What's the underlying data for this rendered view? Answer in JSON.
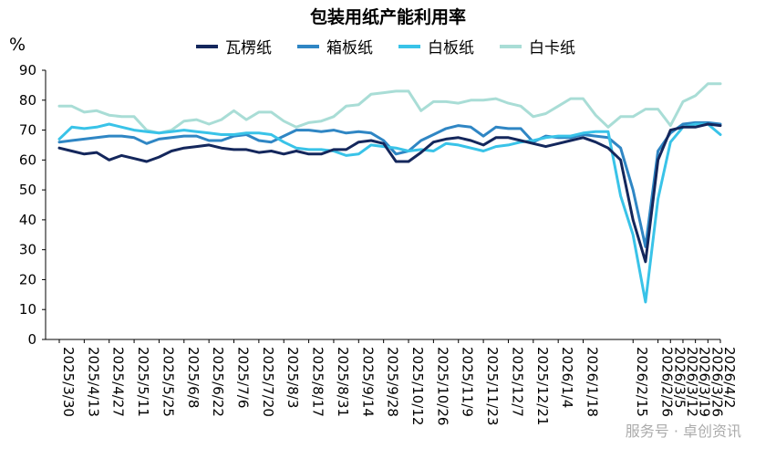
{
  "chart_data": {
    "type": "line",
    "title": "包装用纸产能利用率",
    "ylabel": "%",
    "ylim": [
      0,
      90
    ],
    "yticks": [
      0,
      10,
      20,
      30,
      40,
      50,
      60,
      70,
      80,
      90
    ],
    "grid": false,
    "legend_position": "top",
    "x": [
      "2025/3/30",
      "2025/4/6",
      "2025/4/13",
      "2025/4/20",
      "2025/4/27",
      "2025/5/4",
      "2025/5/11",
      "2025/5/18",
      "2025/5/25",
      "2025/6/1",
      "2025/6/8",
      "2025/6/15",
      "2025/6/22",
      "2025/6/29",
      "2025/7/6",
      "2025/7/13",
      "2025/7/20",
      "2025/7/27",
      "2025/8/3",
      "2025/8/10",
      "2025/8/17",
      "2025/8/24",
      "2025/8/31",
      "2025/9/7",
      "2025/9/14",
      "2025/9/21",
      "2025/9/28",
      "2025/10/5",
      "2025/10/12",
      "2025/10/19",
      "2025/10/26",
      "2025/11/2",
      "2025/11/9",
      "2025/11/16",
      "2025/11/23",
      "2025/11/30",
      "2025/12/7",
      "2025/12/14",
      "2025/12/21",
      "2025/12/28",
      "2026/1/4",
      "2026/1/11",
      "2026/1/18",
      "2026/1/25",
      "2026/2/1",
      "2026/2/8",
      "2026/2/15",
      "2026/2/22",
      "2026/2/26",
      "2026/3/5",
      "2026/3/12",
      "2026/3/19",
      "2026/3/26",
      "2026/4/2"
    ],
    "x_tick_labels": [
      "2025/3/30",
      "2025/4/13",
      "2025/4/27",
      "2025/5/11",
      "2025/5/25",
      "2025/6/8",
      "2025/6/22",
      "2025/7/6",
      "2025/7/20",
      "2025/8/3",
      "2025/8/17",
      "2025/8/31",
      "2025/9/14",
      "2025/9/28",
      "2025/10/12",
      "2025/10/26",
      "2025/11/9",
      "2025/11/23",
      "2025/12/7",
      "2025/12/21",
      "2026/1/4",
      "2026/1/18",
      "2026/2/15",
      "2026/2/26",
      "2026/3/5",
      "2026/3/12",
      "2026/3/19",
      "2026/3/26",
      "2026/4/2"
    ],
    "series": [
      {
        "name": "瓦楞纸",
        "color": "#14275c",
        "values": [
          64,
          63,
          62,
          62.5,
          60,
          61.5,
          60.5,
          59.5,
          61,
          63,
          64,
          64.5,
          65,
          64,
          63.5,
          63.5,
          62.5,
          63,
          62,
          63,
          62,
          62,
          63.5,
          63.5,
          66,
          66.5,
          65.5,
          59.5,
          59.5,
          62.5,
          66,
          67,
          67.5,
          66.5,
          65,
          67.5,
          67.5,
          66.5,
          65.5,
          64.5,
          65.5,
          66.5,
          67.5,
          66,
          64,
          60,
          40,
          26,
          60,
          70,
          71,
          71,
          72,
          71.5
        ]
      },
      {
        "name": "箱板纸",
        "color": "#2f86c4",
        "values": [
          66,
          66.5,
          67,
          67.5,
          68,
          68,
          67.5,
          65.5,
          67,
          67.5,
          68,
          68,
          66.5,
          66.5,
          68,
          68.5,
          66.5,
          66,
          68,
          70,
          70,
          69.5,
          70,
          69,
          69.5,
          69,
          66.5,
          62,
          63,
          66.5,
          68.5,
          70.5,
          71.5,
          71,
          68,
          71,
          70.5,
          70.5,
          66,
          68,
          67.5,
          67.5,
          68.5,
          68,
          67.5,
          64,
          50,
          31,
          63,
          69,
          72,
          72.5,
          72.5,
          72
        ]
      },
      {
        "name": "白板纸",
        "color": "#39c3e8",
        "values": [
          67,
          71,
          70.5,
          71,
          72,
          71,
          70,
          69.5,
          69,
          69.5,
          70,
          69.5,
          69,
          68.5,
          68.5,
          69,
          69,
          68.5,
          66,
          64,
          63.5,
          63.5,
          63,
          61.5,
          62,
          65,
          64.5,
          64,
          63,
          63.5,
          63,
          65.5,
          65,
          64,
          63,
          64.5,
          65,
          66,
          66.5,
          67.5,
          68,
          68,
          69,
          69.5,
          69.5,
          48,
          35,
          12.5,
          47,
          66,
          71,
          72,
          72,
          68.5
        ]
      },
      {
        "name": "白卡纸",
        "color": "#a9ddd6",
        "values": [
          78,
          78,
          76,
          76.5,
          75,
          74.5,
          74.5,
          70,
          69,
          70,
          73,
          73.5,
          72,
          73.5,
          76.5,
          73.5,
          76,
          76,
          73,
          71,
          72.5,
          73,
          74.5,
          78,
          78.5,
          82,
          82.5,
          83,
          83,
          76.5,
          79.5,
          79.5,
          79,
          80,
          80,
          80.5,
          79,
          78,
          74.5,
          75.5,
          78,
          80.5,
          80.5,
          75,
          71,
          74.5,
          74.5,
          77,
          77,
          71.5,
          79.5,
          81.5,
          85.5,
          85.5
        ]
      }
    ]
  },
  "watermark": "服务号 · 卓创资讯"
}
